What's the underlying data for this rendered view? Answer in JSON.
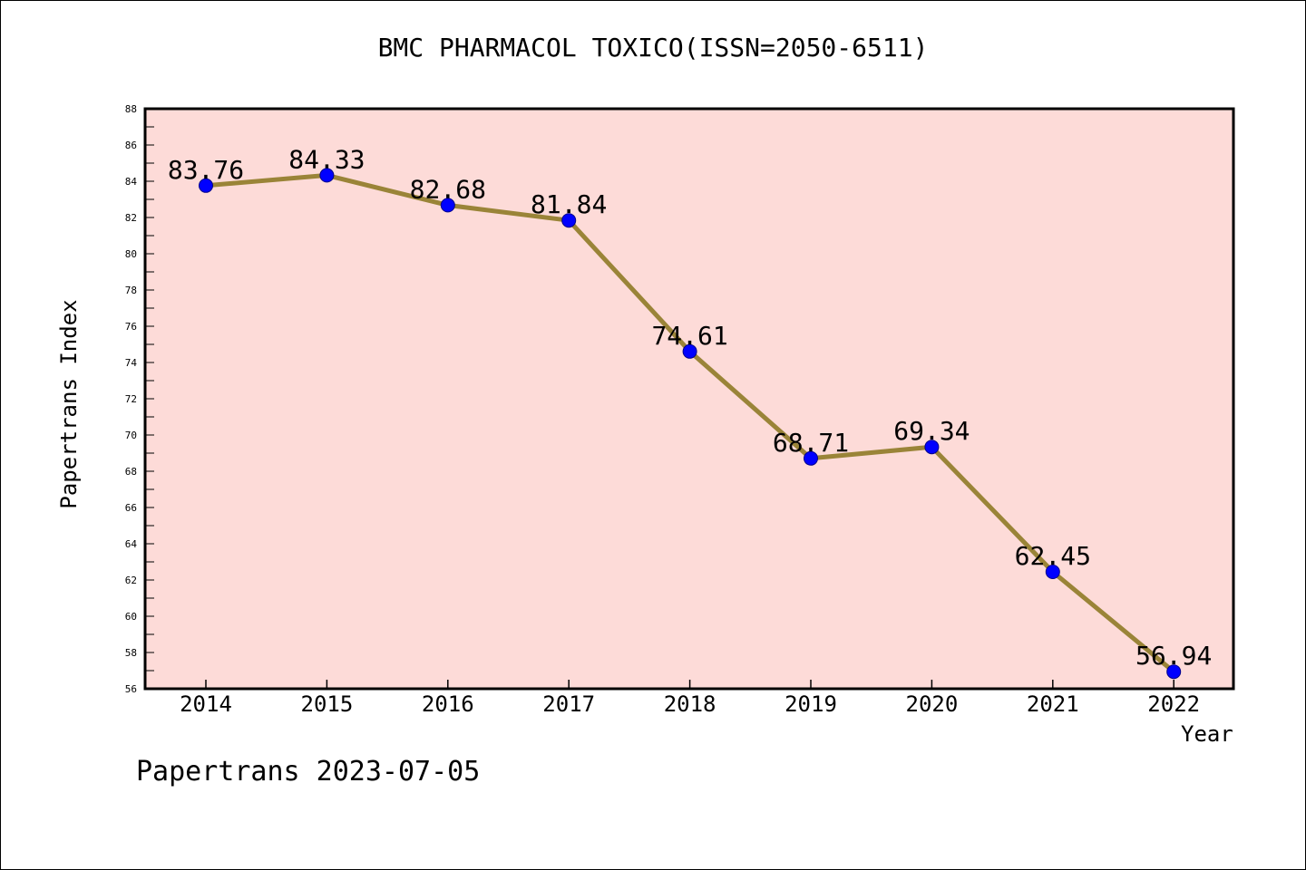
{
  "chart_data": {
    "type": "line",
    "title": "BMC PHARMACOL TOXICO(ISSN=2050-6511)",
    "xlabel": "Year",
    "ylabel": "Papertrans Index",
    "footer": "Papertrans 2023-07-05",
    "categories": [
      "2014",
      "2015",
      "2016",
      "2017",
      "2018",
      "2019",
      "2020",
      "2021",
      "2022"
    ],
    "series": [
      {
        "values": [
          83.76,
          84.33,
          82.68,
          81.84,
          74.61,
          68.71,
          69.34,
          62.45,
          56.94
        ],
        "labels": [
          "83.76",
          "84.33",
          "82.68",
          "81.84",
          "74.61",
          "68.71",
          "69.34",
          "62.45",
          "56.94"
        ]
      }
    ],
    "ylim": [
      56,
      88
    ],
    "yticks": [
      "56",
      "58",
      "60",
      "62",
      "64",
      "66",
      "68",
      "70",
      "72",
      "74",
      "76",
      "78",
      "80",
      "82",
      "84",
      "86",
      "88"
    ],
    "grid": false,
    "colors": {
      "plot_background": "#fddbd8",
      "line": "#9a8438",
      "marker": "#0000ff"
    }
  }
}
